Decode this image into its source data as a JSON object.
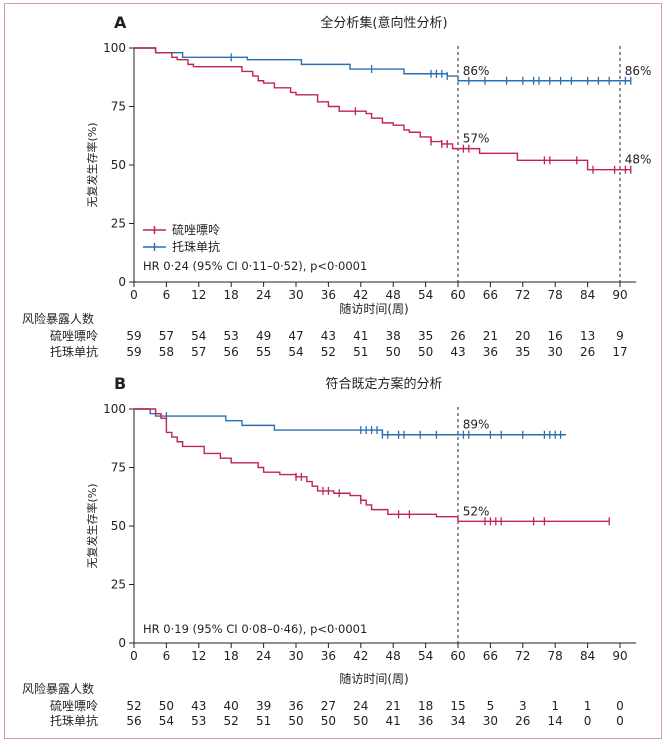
{
  "chart_data": [
    {
      "type": "line",
      "panel_letter": "A",
      "title": "全分析集(意向性分析)",
      "xlabel": "随访时间(周)",
      "ylabel": "无复发生存率(%)",
      "xticks": [
        0,
        6,
        12,
        18,
        24,
        30,
        36,
        42,
        48,
        54,
        60,
        66,
        72,
        78,
        84,
        90
      ],
      "yticks": [
        0,
        25,
        50,
        75,
        100
      ],
      "xlim": [
        0,
        93
      ],
      "ylim": [
        0,
        100
      ],
      "vlines": [
        60,
        90
      ],
      "legend": [
        {
          "name": "硫唑嘌呤",
          "color": "#c0244f"
        },
        {
          "name": "托珠单抗",
          "color": "#2a6fb4"
        }
      ],
      "stats_text": "HR 0·24 (95% CI 0·11–0·52), p<0·0001",
      "annotations": [
        {
          "text": "86%",
          "x": 60.5,
          "y": 86,
          "color": "blue"
        },
        {
          "text": "86%",
          "x": 90.5,
          "y": 86,
          "color": "blue"
        },
        {
          "text": "57%",
          "x": 60.5,
          "y": 57,
          "color": "red"
        },
        {
          "text": "48%",
          "x": 90.5,
          "y": 48,
          "color": "red"
        }
      ],
      "series": [
        {
          "name": "托珠单抗",
          "color": "#2a6fb4",
          "steps": [
            [
              0,
              100
            ],
            [
              4,
              98
            ],
            [
              9,
              96
            ],
            [
              21,
              95
            ],
            [
              31,
              93
            ],
            [
              40,
              91
            ],
            [
              50,
              89
            ],
            [
              58,
              88
            ],
            [
              60,
              86
            ],
            [
              92,
              86
            ]
          ],
          "censors": [
            18,
            44,
            55,
            56,
            57,
            58,
            62,
            65,
            69,
            72,
            74,
            75,
            77,
            79,
            81,
            84,
            86,
            88,
            91,
            92
          ]
        },
        {
          "name": "硫唑嘌呤",
          "color": "#c0244f",
          "steps": [
            [
              0,
              100
            ],
            [
              4,
              98
            ],
            [
              7,
              96
            ],
            [
              8,
              95
            ],
            [
              10,
              93
            ],
            [
              11,
              92
            ],
            [
              20,
              90
            ],
            [
              22,
              88
            ],
            [
              23,
              86
            ],
            [
              24,
              85
            ],
            [
              26,
              83
            ],
            [
              29,
              81
            ],
            [
              30,
              80
            ],
            [
              34,
              77
            ],
            [
              36,
              75
            ],
            [
              38,
              73
            ],
            [
              43,
              72
            ],
            [
              44,
              70
            ],
            [
              46,
              68
            ],
            [
              48,
              67
            ],
            [
              50,
              65
            ],
            [
              51,
              64
            ],
            [
              53,
              62
            ],
            [
              55,
              60
            ],
            [
              57,
              59
            ],
            [
              59,
              57
            ],
            [
              62,
              57
            ],
            [
              64,
              55
            ],
            [
              65,
              55
            ],
            [
              71,
              52
            ],
            [
              83,
              52
            ],
            [
              84,
              48
            ],
            [
              92,
              48
            ]
          ],
          "censors": [
            41,
            55,
            57,
            58,
            61,
            62,
            76,
            77,
            82,
            85,
            89,
            91,
            92
          ]
        }
      ],
      "risk_table": {
        "title": "风险暴露人数",
        "time_points": [
          0,
          6,
          12,
          18,
          24,
          30,
          36,
          42,
          48,
          54,
          60,
          66,
          72,
          78,
          84,
          90
        ],
        "rows": [
          {
            "label": "硫唑嘌呤",
            "values": [
              "59",
              "57",
              "54",
              "53",
              "49",
              "47",
              "43",
              "41",
              "38",
              "35",
              "26",
              "21",
              "20",
              "16",
              "13",
              "9"
            ]
          },
          {
            "label": "托珠单抗",
            "values": [
              "59",
              "58",
              "57",
              "56",
              "55",
              "54",
              "52",
              "51",
              "50",
              "50",
              "43",
              "36",
              "35",
              "30",
              "26",
              "17"
            ]
          }
        ]
      }
    },
    {
      "type": "line",
      "panel_letter": "B",
      "title": "符合既定方案的分析",
      "xlabel": "随访时间(周)",
      "ylabel": "无复发生存率(%)",
      "xticks": [
        0,
        6,
        12,
        18,
        24,
        30,
        36,
        42,
        48,
        54,
        60,
        66,
        72,
        78,
        84,
        90
      ],
      "yticks": [
        0,
        25,
        50,
        75,
        100
      ],
      "xlim": [
        0,
        93
      ],
      "ylim": [
        0,
        100
      ],
      "vlines": [
        60
      ],
      "stats_text": "HR 0·19 (95% CI 0·08–0·46), p<0·0001",
      "annotations": [
        {
          "text": "89%",
          "x": 60.5,
          "y": 89,
          "color": "blue"
        },
        {
          "text": "52%",
          "x": 60.5,
          "y": 52,
          "color": "red"
        }
      ],
      "series": [
        {
          "name": "托珠单抗",
          "color": "#2a6fb4",
          "steps": [
            [
              0,
              100
            ],
            [
              3,
              98
            ],
            [
              4,
              97
            ],
            [
              17,
              95
            ],
            [
              20,
              93
            ],
            [
              26,
              91
            ],
            [
              42,
              91
            ],
            [
              46,
              89
            ],
            [
              80,
              89
            ]
          ],
          "censors": [
            6,
            42,
            43,
            44,
            45,
            46,
            47,
            49,
            50,
            53,
            56,
            61,
            62,
            66,
            68,
            72,
            76,
            77,
            78,
            79
          ]
        },
        {
          "name": "硫唑嘌呤",
          "color": "#c0244f",
          "steps": [
            [
              0,
              100
            ],
            [
              4,
              98
            ],
            [
              5,
              96
            ],
            [
              6,
              90
            ],
            [
              7,
              88
            ],
            [
              8,
              86
            ],
            [
              9,
              84
            ],
            [
              13,
              81
            ],
            [
              16,
              79
            ],
            [
              18,
              77
            ],
            [
              23,
              75
            ],
            [
              24,
              73
            ],
            [
              27,
              72
            ],
            [
              30,
              71
            ],
            [
              32,
              69
            ],
            [
              33,
              67
            ],
            [
              34,
              65
            ],
            [
              37,
              64
            ],
            [
              40,
              63
            ],
            [
              42,
              61
            ],
            [
              43,
              59
            ],
            [
              44,
              57
            ],
            [
              47,
              55
            ],
            [
              56,
              54
            ],
            [
              60,
              52
            ],
            [
              88,
              52
            ]
          ],
          "censors": [
            30,
            31,
            35,
            36,
            38,
            42,
            49,
            51,
            65,
            66,
            67,
            68,
            74,
            76,
            88
          ]
        }
      ],
      "risk_table": {
        "title": "风险暴露人数",
        "time_points": [
          0,
          6,
          12,
          18,
          24,
          30,
          36,
          42,
          48,
          54,
          60,
          66,
          72,
          78,
          84,
          90
        ],
        "rows": [
          {
            "label": "硫唑嘌呤",
            "values": [
              "52",
              "50",
              "43",
              "40",
              "39",
              "36",
              "27",
              "24",
              "21",
              "18",
              "15",
              "5",
              "3",
              "1",
              "1",
              "0"
            ]
          },
          {
            "label": "托珠单抗",
            "values": [
              "56",
              "54",
              "53",
              "52",
              "51",
              "50",
              "50",
              "50",
              "41",
              "36",
              "34",
              "30",
              "26",
              "14",
              "0",
              "0"
            ]
          }
        ]
      }
    }
  ]
}
